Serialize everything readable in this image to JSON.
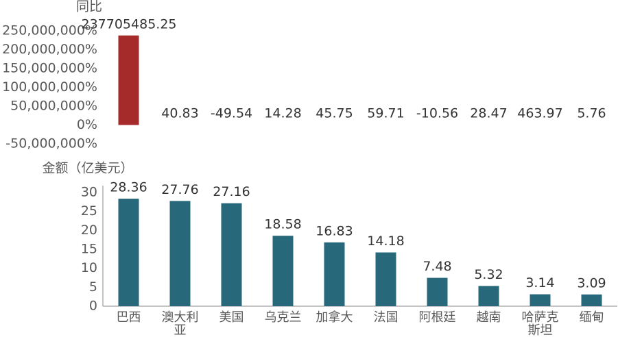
{
  "chart_data": [
    {
      "type": "bar",
      "y_label": "同比",
      "color": "#a52a2a",
      "values": [
        237705485.25,
        40.83,
        -49.54,
        14.28,
        45.75,
        59.71,
        -10.56,
        28.47,
        463.97,
        5.76
      ],
      "ylim": [
        -50000000,
        250000000
      ],
      "yticks": [
        {
          "value": -50000000,
          "label": "-50,000,000%"
        },
        {
          "value": 0,
          "label": "0%"
        },
        {
          "value": 50000000,
          "label": "50,000,000%"
        },
        {
          "value": 100000000,
          "label": "100,000,000%"
        },
        {
          "value": 150000000,
          "label": "150,000,000%"
        },
        {
          "value": 200000000,
          "label": "200,000,000%"
        },
        {
          "value": 250000000,
          "label": "250,000,000%"
        }
      ]
    },
    {
      "type": "bar",
      "y_label": "金额（亿美元）",
      "color": "#27697a",
      "categories": [
        "巴西",
        "澳大利亚",
        "美国",
        "乌克兰",
        "加拿大",
        "法国",
        "阿根廷",
        "越南",
        "哈萨克斯坦",
        "缅甸"
      ],
      "values": [
        28.36,
        27.76,
        27.16,
        18.58,
        16.83,
        14.18,
        7.48,
        5.32,
        3.14,
        3.09
      ],
      "ylim": [
        0,
        30
      ],
      "yticks": [
        0,
        5,
        10,
        15,
        20,
        25,
        30
      ]
    }
  ]
}
